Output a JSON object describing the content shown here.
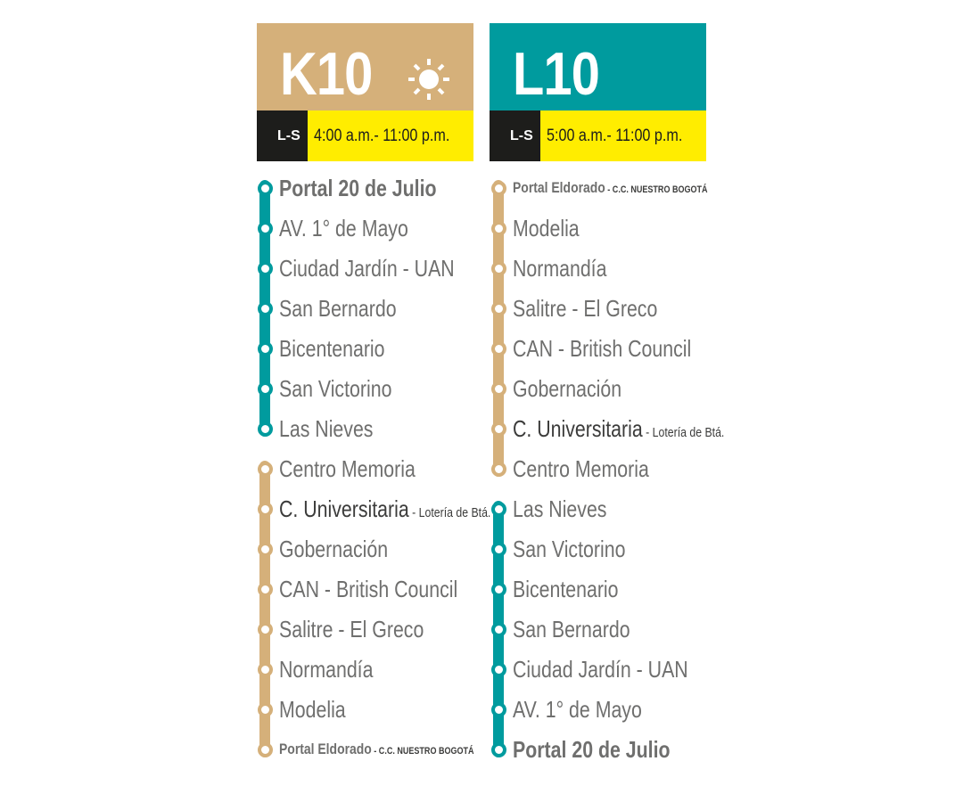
{
  "colors": {
    "tan": "#D5B07A",
    "teal": "#009B9E",
    "yellow": "#FFED00",
    "black": "#1D1D1B",
    "text": "#6F6F6E"
  },
  "routes": [
    {
      "code": "K10",
      "header_color": "#D5B07A",
      "icon": "sun-icon",
      "days": "L-S",
      "hours": "4:00 a.m.- 11:00 p.m.",
      "stations": [
        {
          "name": "Portal 20 de Julio",
          "style": "bold",
          "color": "#009B9E"
        },
        {
          "name": "AV. 1° de Mayo",
          "color": "#009B9E"
        },
        {
          "name": "Ciudad Jardín - UAN",
          "color": "#009B9E"
        },
        {
          "name": "San Bernardo",
          "color": "#009B9E"
        },
        {
          "name": "Bicentenario",
          "color": "#009B9E"
        },
        {
          "name": "San Victorino",
          "color": "#009B9E"
        },
        {
          "name": "Las Nieves",
          "color": "#009B9E"
        },
        {
          "name": "Centro Memoria",
          "color": "#D5B07A"
        },
        {
          "name": "C. Universitaria",
          "suffix": " - Lotería de Btá.",
          "color": "#D5B07A"
        },
        {
          "name": "Gobernación",
          "color": "#D5B07A"
        },
        {
          "name": "CAN - British Council",
          "color": "#D5B07A"
        },
        {
          "name": "Salitre - El Greco",
          "color": "#D5B07A"
        },
        {
          "name": "Normandía",
          "color": "#D5B07A"
        },
        {
          "name": "Modelia",
          "color": "#D5B07A"
        },
        {
          "name": "Portal Eldorado",
          "suffix": " - C.C. NUESTRO BOGOTÁ",
          "style": "small",
          "color": "#D5B07A"
        }
      ]
    },
    {
      "code": "L10",
      "header_color": "#009B9E",
      "days": "L-S",
      "hours": "5:00 a.m.- 11:00 p.m.",
      "stations": [
        {
          "name": "Portal Eldorado",
          "suffix": " - C.C. NUESTRO BOGOTÁ",
          "style": "small",
          "color": "#D5B07A"
        },
        {
          "name": "Modelia",
          "color": "#D5B07A"
        },
        {
          "name": "Normandía",
          "color": "#D5B07A"
        },
        {
          "name": "Salitre - El Greco",
          "color": "#D5B07A"
        },
        {
          "name": "CAN - British Council",
          "color": "#D5B07A"
        },
        {
          "name": "Gobernación",
          "color": "#D5B07A"
        },
        {
          "name": "C. Universitaria",
          "suffix": " - Lotería de Btá.",
          "color": "#D5B07A"
        },
        {
          "name": "Centro Memoria",
          "color": "#D5B07A"
        },
        {
          "name": "Las Nieves",
          "color": "#009B9E"
        },
        {
          "name": "San Victorino",
          "color": "#009B9E"
        },
        {
          "name": "Bicentenario",
          "color": "#009B9E"
        },
        {
          "name": "San Bernardo",
          "color": "#009B9E"
        },
        {
          "name": "Ciudad Jardín - UAN",
          "color": "#009B9E"
        },
        {
          "name": "AV. 1° de Mayo",
          "color": "#009B9E"
        },
        {
          "name": "Portal 20 de Julio",
          "style": "bold",
          "color": "#009B9E"
        }
      ]
    }
  ]
}
